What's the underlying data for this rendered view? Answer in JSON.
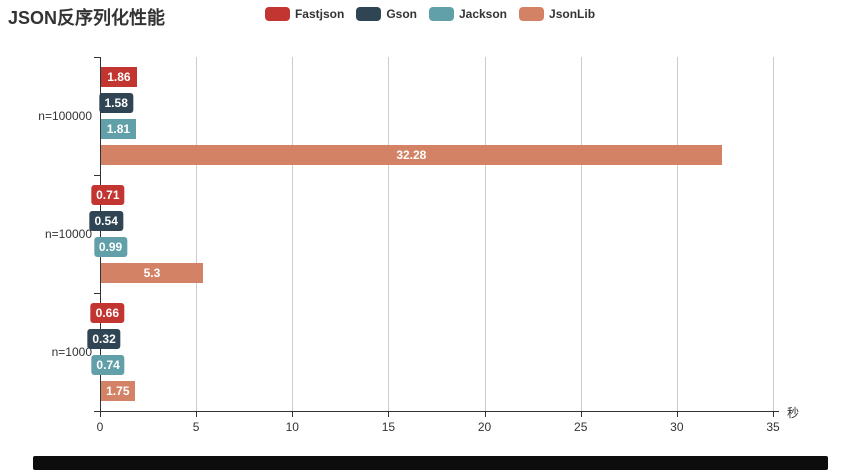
{
  "title": "JSON反序列化性能",
  "chart_data": {
    "type": "bar",
    "orientation": "horizontal",
    "title": "JSON反序列化性能",
    "categories": [
      "n=100000",
      "n=10000",
      "n=1000"
    ],
    "series": [
      {
        "name": "Fastjson",
        "color": "#c23531",
        "values": [
          1.86,
          0.71,
          0.66
        ]
      },
      {
        "name": "Gson",
        "color": "#2f4554",
        "values": [
          1.58,
          0.54,
          0.32
        ]
      },
      {
        "name": "Jackson",
        "color": "#61a0a8",
        "values": [
          1.81,
          0.99,
          0.74
        ]
      },
      {
        "name": "JsonLib",
        "color": "#d48265",
        "values": [
          32.28,
          5.3,
          1.75
        ]
      }
    ],
    "value_labels": [
      [
        "1.86",
        "0.71",
        "0.66"
      ],
      [
        "1.58",
        "0.54",
        "0.32"
      ],
      [
        "1.81",
        "0.99",
        "0.74"
      ],
      [
        "32.28",
        "5.3",
        "1.75"
      ]
    ],
    "x_ticks": [
      "0",
      "5",
      "10",
      "15",
      "20",
      "25",
      "30",
      "35"
    ],
    "xlim": [
      0,
      35
    ],
    "x_unit": "秒",
    "grid": true,
    "legend_position": "top-center",
    "legend": [
      "Fastjson",
      "Gson",
      "Jackson",
      "JsonLib"
    ]
  },
  "colors": {
    "axis": "#333333",
    "grid": "#cccccc",
    "text": "#333333",
    "bar_label_text": "#ffffff",
    "background": "#ffffff",
    "footer_bar": "#0d0d0d"
  }
}
